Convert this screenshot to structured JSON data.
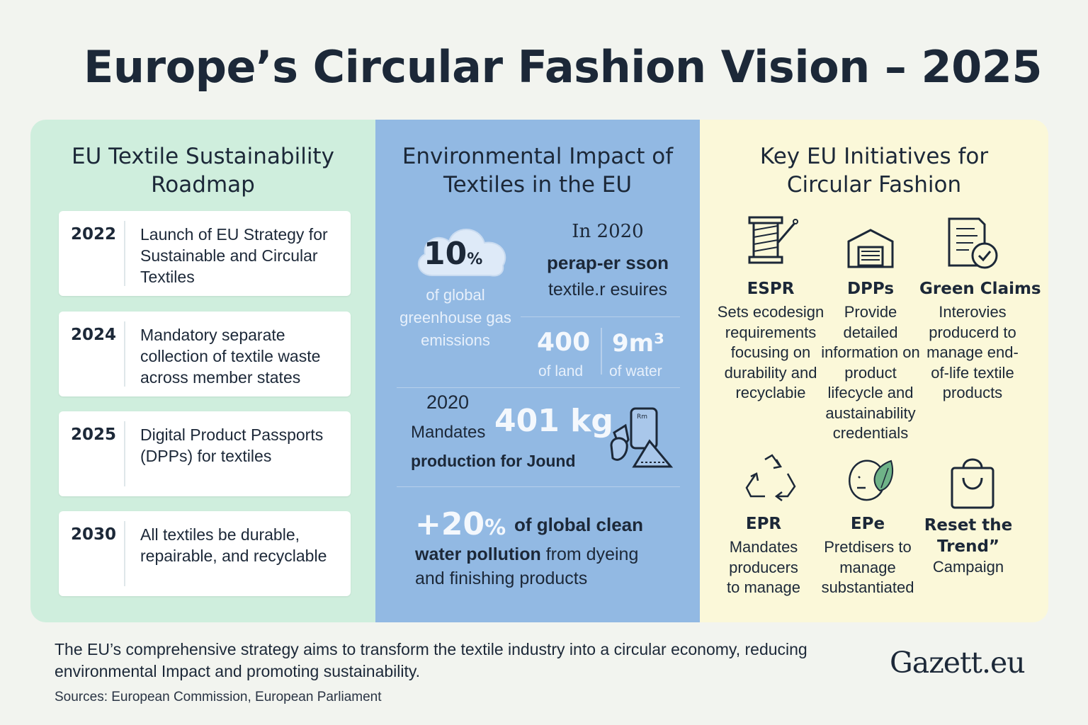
{
  "title": "Europe’s Circular Fashion Vision – 2025",
  "roadmap": {
    "heading": "EU Textile Sustainability Roadmap",
    "items": [
      {
        "year": "2022",
        "text": "Launch of EU Strategy for Sustainable and Circular Textiles"
      },
      {
        "year": "2024",
        "text": "Mandatory separate collection of textile waste across member states"
      },
      {
        "year": "2025",
        "text": "Digital Product Passports (DPPs) for textiles"
      },
      {
        "year": "2030",
        "text": "All textiles be durable, repairable, and recyclable"
      }
    ]
  },
  "impact": {
    "heading": "Environmental Impact of Textiles in the EU",
    "emissions_value": "10",
    "emissions_unit": "%",
    "emissions_label": "of global greenhouse gas emissions",
    "year_line": "In 2020",
    "per_person_line1": "perap-er sson",
    "per_person_line2": "textile.r esuires",
    "land_value": "400",
    "land_label": "of land",
    "water_value": "9m³",
    "water_label": "of water",
    "year2": "2020",
    "mandates_label": "Mandates",
    "kg_value": "401 kg",
    "production_label": "production for Jound",
    "pollution_value": "+20",
    "pollution_unit": "%",
    "pollution_text_bold": "of global clean",
    "pollution_text_bold2": "water pollution",
    "pollution_text_rest": "from dyeing",
    "pollution_text_line3": "and finishing products",
    "bag_label": "Rm"
  },
  "initiatives": {
    "heading": "Key EU Initiatives for Circular Fashion",
    "items": [
      {
        "name": "ESPR",
        "icon": "thread-spool-icon",
        "desc": "Sets ecodesign requirements focusing on durability and recyclabie"
      },
      {
        "name": "DPPs",
        "icon": "passport-box-icon",
        "desc": "Provide detailed information on product lifecycle and austainability credentials"
      },
      {
        "name": "Green Claims",
        "icon": "document-check-icon",
        "desc": "Interovies producerd to manage end-of-life textile products"
      },
      {
        "name": "EPR",
        "icon": "recycle-icon",
        "desc": "Mandates producers to manage"
      },
      {
        "name": "EPe",
        "icon": "leaf-circle-icon",
        "desc": "Pretdisers to manage substantiated"
      },
      {
        "name": "Reset the Trend”",
        "icon": "shopping-bag-icon",
        "desc": "Campaign"
      }
    ]
  },
  "footer": {
    "summary": "The EU’s comprehensive strategy aims to transform the textile industry into a circular economy, reducing environmental Impact and promoting sustainability.",
    "sources": "Sources: European Commission, European Parliament",
    "brand": "Gazett.eu"
  },
  "colors": {
    "roadmap_bg": "#cfeedd",
    "impact_bg": "#92b9e3",
    "initiatives_bg": "#fbf8d9",
    "text": "#1c2838"
  }
}
